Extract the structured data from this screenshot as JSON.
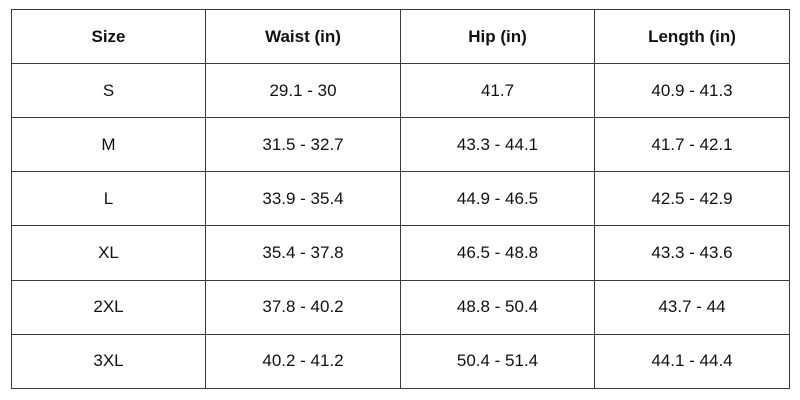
{
  "table": {
    "headers": [
      "Size",
      "Waist (in)",
      "Hip (in)",
      "Length (in)"
    ],
    "rows": [
      [
        "S",
        "29.1 - 30",
        "41.7",
        "40.9 - 41.3"
      ],
      [
        "M",
        "31.5 - 32.7",
        "43.3 - 44.1",
        "41.7 - 42.1"
      ],
      [
        "L",
        "33.9 - 35.4",
        "44.9 - 46.5",
        "42.5 - 42.9"
      ],
      [
        "XL",
        "35.4 - 37.8",
        "46.5 - 48.8",
        "43.3 - 43.6"
      ],
      [
        "2XL",
        "37.8 - 40.2",
        "48.8 - 50.4",
        "43.7 - 44"
      ],
      [
        "3XL",
        "40.2 - 41.2",
        "50.4 - 51.4",
        "44.1 - 44.4"
      ]
    ]
  }
}
